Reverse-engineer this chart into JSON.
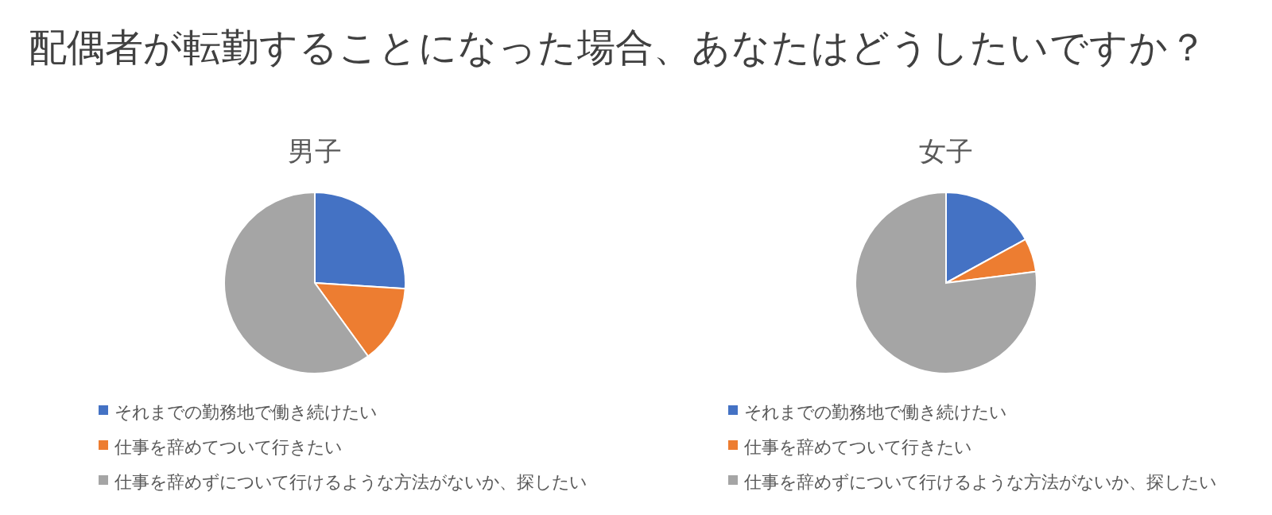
{
  "chart_data": [
    {
      "type": "other",
      "title": "配偶者が転勤することになった場合、あなたはどうしたいですか？"
    },
    {
      "type": "pie",
      "title": "男子",
      "categories": [
        "それまでの勤務地で働き続けたい",
        "仕事を辞めてついて行きたい",
        "仕事を辞めずについて行けるような方法がないか、探したい"
      ],
      "values": [
        26,
        14,
        60
      ],
      "colors": [
        "#4472c4",
        "#ed7d31",
        "#a5a5a5"
      ],
      "legend": "bottom"
    },
    {
      "type": "pie",
      "title": "女子",
      "categories": [
        "それまでの勤務地で働き続けたい",
        "仕事を辞めてついて行きたい",
        "仕事を辞めずについて行けるような方法がないか、探したい"
      ],
      "values": [
        17,
        6,
        77
      ],
      "colors": [
        "#4472c4",
        "#ed7d31",
        "#a5a5a5"
      ],
      "legend": "bottom"
    }
  ]
}
